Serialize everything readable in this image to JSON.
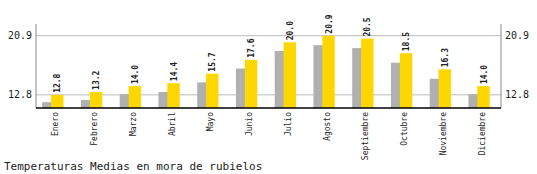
{
  "chart_data": {
    "type": "bar",
    "title": "Temperaturas Medias en mora de rubielos",
    "categories": [
      "Enero",
      "Febrero",
      "Marzo",
      "Abril",
      "Mayo",
      "Junio",
      "Julio",
      "Agosto",
      "Septiembre",
      "Octubre",
      "Noviembre",
      "Diciembre"
    ],
    "series": [
      {
        "color": "#B0B0B0",
        "values": [
          11.8,
          12.1,
          12.9,
          13.2,
          14.5,
          16.4,
          18.8,
          19.6,
          19.2,
          17.2,
          15.0,
          12.9
        ]
      },
      {
        "color": "#FFD700",
        "values": [
          12.8,
          13.2,
          14.0,
          14.4,
          15.7,
          17.6,
          20.0,
          20.9,
          20.5,
          18.5,
          16.3,
          14.0
        ],
        "value_labels": [
          "12.8",
          "13.2",
          "14.0",
          "14.4",
          "15.7",
          "17.6",
          "20.0",
          "20.9",
          "20.5",
          "18.5",
          "16.3",
          "14.0"
        ],
        "data_labels": true
      }
    ],
    "ylim": [
      11.0,
      22.5
    ],
    "yticks": [
      12.8,
      20.9
    ],
    "y2lim": [
      11.0,
      22.5
    ],
    "y2ticks": [
      12.8,
      20.9
    ],
    "grid": true
  }
}
